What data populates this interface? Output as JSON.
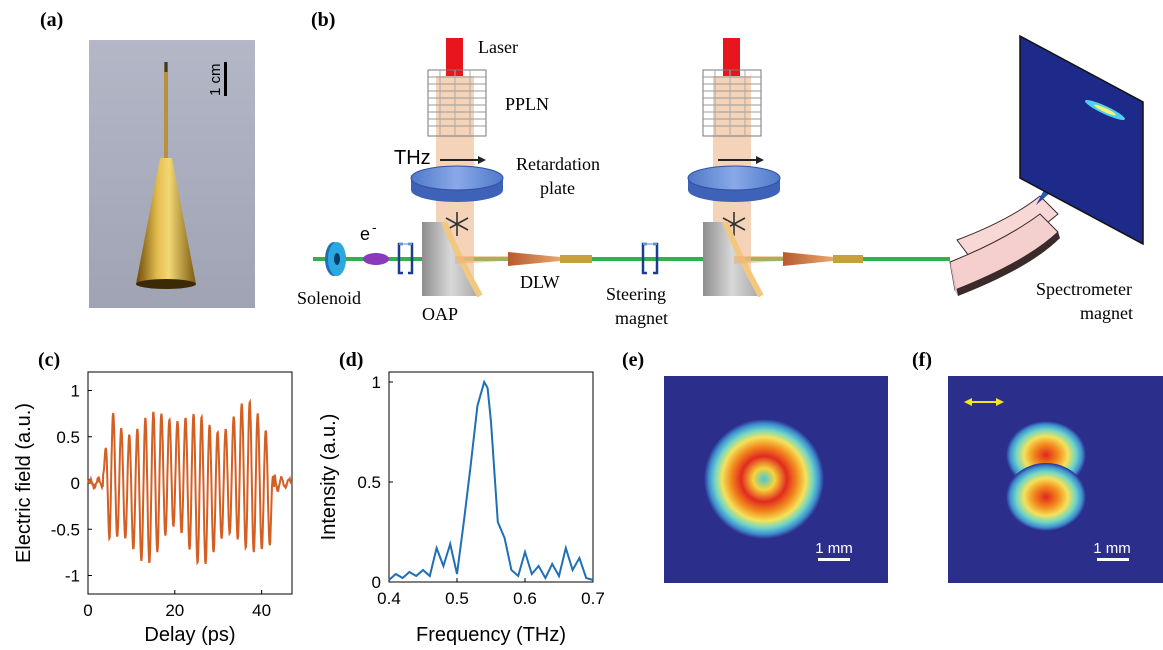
{
  "panel_labels": {
    "a": "(a)",
    "b": "(b)",
    "c": "(c)",
    "d": "(d)",
    "e": "(e)",
    "f": "(f)"
  },
  "photo": {
    "scale_bar_label": "1 cm"
  },
  "setup": {
    "laser": "Laser",
    "ppln": "PPLN",
    "thz": "THz",
    "retardation_line1": "Retardation",
    "retardation_line2": "plate",
    "electron": "e",
    "electron_sup": "-",
    "solenoid": "Solenoid",
    "oap": "OAP",
    "dlw": "DLW",
    "steering_line1": "Steering",
    "steering_line2": "magnet",
    "spectrometer_line1": "Spectrometer",
    "spectrometer_line2": "magnet"
  },
  "images": {
    "e_scale_label": "1 mm",
    "f_scale_label": "1 mm"
  },
  "colors": {
    "beamline": "#2eb34a",
    "laser": "#e8141e",
    "thz_line": "#d35f24",
    "spectrum_line": "#1f6fb4",
    "image_bg": "#2c2e8c",
    "arrow": "#f2e51a"
  },
  "chart_data": [
    {
      "panel": "c",
      "type": "line",
      "xlabel": "Delay (ps)",
      "ylabel": "Electric field (a.u.)",
      "xlim": [
        0,
        47
      ],
      "ylim": [
        -1.2,
        1.2
      ],
      "xticks": [
        "0",
        "20",
        "40"
      ],
      "xtick_values": [
        0,
        20,
        40
      ],
      "yticks": [
        "1",
        "0.5",
        "0",
        "-0.5",
        "-1"
      ],
      "ytick_values": [
        1,
        0.5,
        0,
        -0.5,
        -1
      ],
      "signal": {
        "start": 3.5,
        "end": 43,
        "period": 1.85,
        "envelope_amplitude": 0.75
      },
      "series": [
        {
          "values": []
        }
      ]
    },
    {
      "panel": "d",
      "type": "line",
      "xlabel": "Frequency (THz)",
      "ylabel": "Intensity (a.u.)",
      "xlim": [
        0.4,
        0.7
      ],
      "ylim": [
        0,
        1.05
      ],
      "xticks": [
        "0.4",
        "0.5",
        "0.6",
        "0.7"
      ],
      "xtick_values": [
        0.4,
        0.5,
        0.6,
        0.7
      ],
      "yticks": [
        "1",
        "0.5",
        "0"
      ],
      "ytick_values": [
        1,
        0.5,
        0
      ],
      "x": [
        0.4,
        0.41,
        0.42,
        0.43,
        0.44,
        0.45,
        0.46,
        0.47,
        0.48,
        0.49,
        0.5,
        0.51,
        0.52,
        0.53,
        0.54,
        0.545,
        0.55,
        0.56,
        0.57,
        0.58,
        0.59,
        0.6,
        0.61,
        0.62,
        0.63,
        0.64,
        0.65,
        0.66,
        0.67,
        0.68,
        0.69,
        0.7
      ],
      "y": [
        0.01,
        0.04,
        0.02,
        0.05,
        0.03,
        0.06,
        0.03,
        0.17,
        0.08,
        0.19,
        0.04,
        0.3,
        0.58,
        0.88,
        1.0,
        0.97,
        0.8,
        0.3,
        0.22,
        0.06,
        0.03,
        0.15,
        0.04,
        0.08,
        0.02,
        0.09,
        0.03,
        0.17,
        0.06,
        0.12,
        0.02,
        0.01
      ]
    }
  ]
}
